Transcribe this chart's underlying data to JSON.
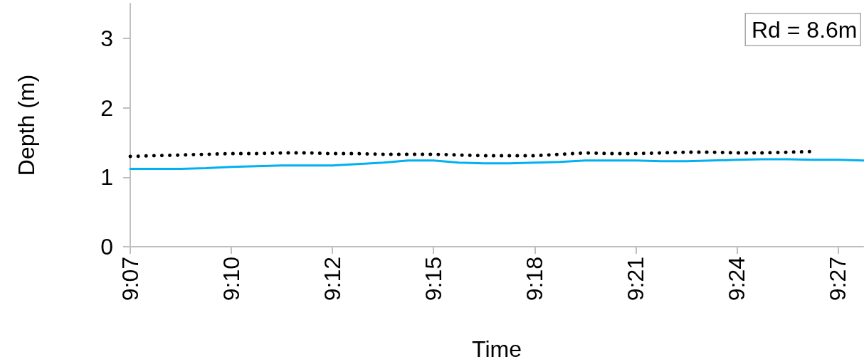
{
  "chart_data": {
    "type": "line",
    "xlabel": "Time",
    "ylabel": "Depth (m)",
    "categories": [
      "9:07",
      null,
      null,
      null,
      "9:10",
      null,
      null,
      null,
      "9:12",
      null,
      null,
      null,
      "9:15",
      null,
      null,
      null,
      "9:18",
      null,
      null,
      null,
      "9:21",
      null,
      null,
      null,
      "9:24",
      null,
      null,
      null,
      "9:27",
      null
    ],
    "series": [
      {
        "color": "#00b0f0",
        "line_style": "solid",
        "values": [
          1.12,
          1.12,
          1.12,
          1.13,
          1.15,
          1.16,
          1.17,
          1.17,
          1.17,
          1.19,
          1.21,
          1.24,
          1.24,
          1.21,
          1.2,
          1.2,
          1.21,
          1.22,
          1.24,
          1.24,
          1.24,
          1.23,
          1.23,
          1.24,
          1.25,
          1.26,
          1.26,
          1.25,
          1.25,
          1.24
        ]
      },
      {
        "color": "#000000",
        "line_style": "dotted",
        "values": [
          1.3,
          1.31,
          1.32,
          1.33,
          1.34,
          1.34,
          1.35,
          1.35,
          1.34,
          1.34,
          1.33,
          1.33,
          1.33,
          1.32,
          1.31,
          1.31,
          1.31,
          1.33,
          1.35,
          1.34,
          1.34,
          1.35,
          1.36,
          1.36,
          1.35,
          1.35,
          1.36,
          1.37,
          null,
          null
        ]
      }
    ],
    "ylim": [
      0,
      3.5
    ],
    "yticks": [
      0,
      1,
      2,
      3
    ],
    "grid": false,
    "marker": "none",
    "annotations": [
      "Rd = 8.6m"
    ]
  }
}
